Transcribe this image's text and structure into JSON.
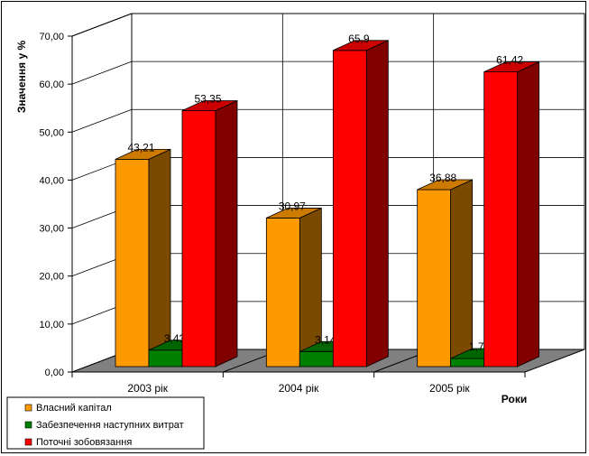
{
  "chart_data": {
    "type": "bar",
    "categories": [
      "2003 рік",
      "2004 рік",
      "2005 рік"
    ],
    "series": [
      {
        "name": "Власний капітал",
        "values": [
          43.21,
          30.97,
          36.88
        ],
        "labels": [
          "43,21",
          "30,97",
          "36,88"
        ]
      },
      {
        "name": "Забезпечення наступних витрат",
        "values": [
          3.43,
          3.14,
          1.7
        ],
        "labels": [
          "3,43",
          "3,14",
          "1,7"
        ]
      },
      {
        "name": "Поточні зобовязання",
        "values": [
          53.35,
          65.9,
          61.42
        ],
        "labels": [
          "53,35",
          "65,9",
          "61,42"
        ]
      }
    ],
    "ylabel": "Значення у %",
    "xlabel": "Роки",
    "ylim": [
      0,
      70
    ],
    "yticks": [
      "0,00",
      "10,00",
      "20,00",
      "30,00",
      "40,00",
      "50,00",
      "60,00",
      "70,00"
    ],
    "grid": true,
    "legend": "bottom-left"
  },
  "colors": {
    "series": [
      "#FF9900",
      "#008000",
      "#FF0000"
    ],
    "series_side": [
      "#7A4A00",
      "#003D00",
      "#800000"
    ],
    "series_top": [
      "#CC7A00",
      "#006600",
      "#CC0000"
    ],
    "floor": "#808080",
    "wall": "#ffffff",
    "grid": "#000000"
  }
}
